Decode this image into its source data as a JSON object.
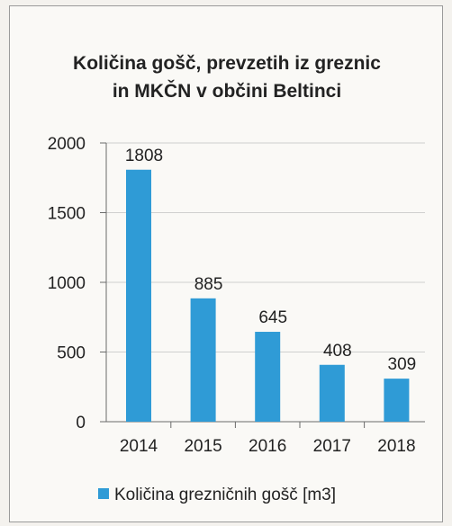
{
  "chart_data": {
    "type": "bar",
    "title_lines": [
      "Količina gošč, prevzetih iz greznic",
      "in MKČN v občini Beltinci"
    ],
    "categories": [
      "2014",
      "2015",
      "2016",
      "2017",
      "2018"
    ],
    "series": [
      {
        "name": "Količina grezničnih gošč [m3]",
        "values": [
          1808,
          885,
          645,
          408,
          309
        ],
        "color": "#2f9bd6"
      }
    ],
    "data_labels": [
      "1808",
      "885",
      "645",
      "408",
      "309"
    ],
    "y_ticks": [
      "0",
      "500",
      "1000",
      "1500",
      "2000"
    ],
    "ylim": [
      0,
      2000
    ],
    "grid": true,
    "legend_position": "bottom"
  }
}
